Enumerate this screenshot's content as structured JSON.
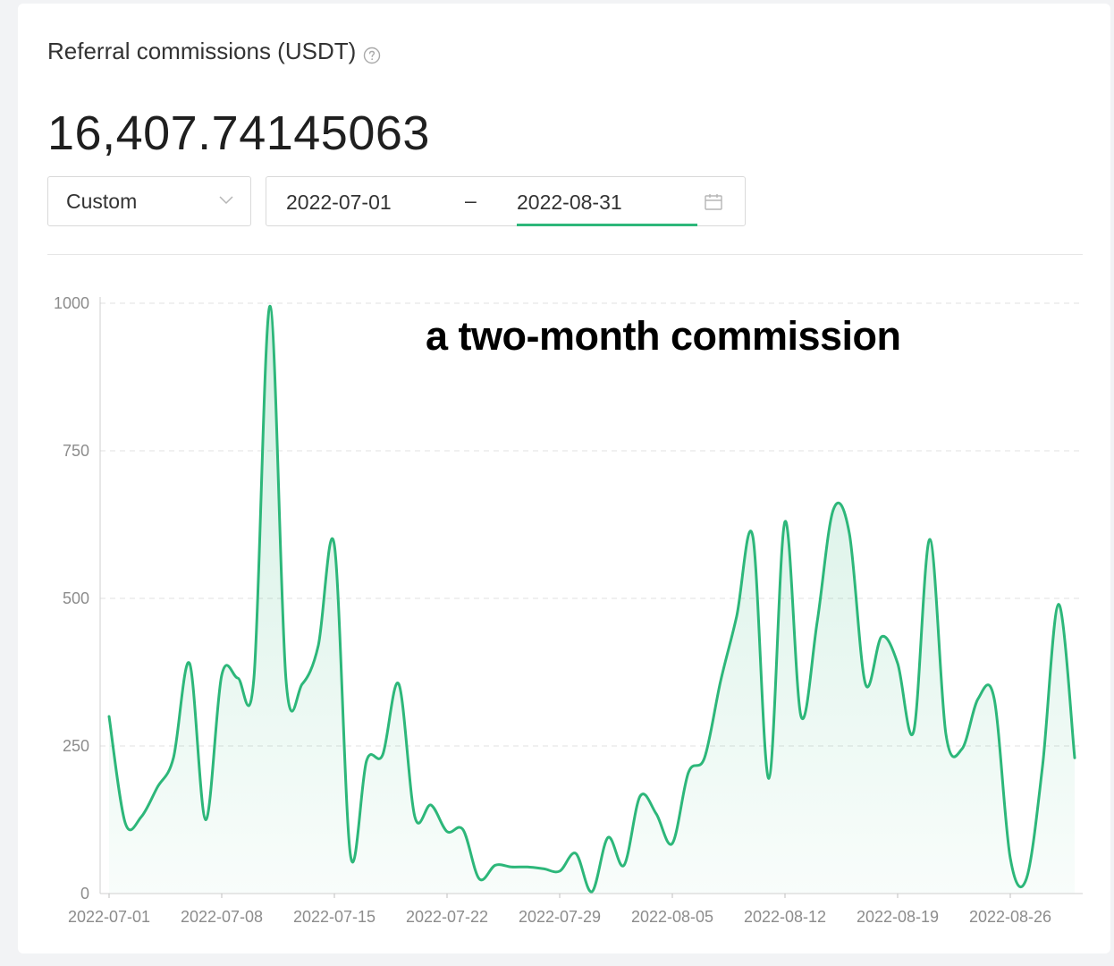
{
  "header": {
    "title": "Referral commissions (USDT)",
    "help_icon": "question-circle-icon",
    "amount": "16,407.74145063"
  },
  "filter": {
    "period_value": "Custom",
    "start_date": "2022-07-01",
    "separator": "–",
    "end_date": "2022-08-31",
    "calendar_icon": "calendar-icon"
  },
  "overlay_caption": "a two-month commission",
  "colors": {
    "accent": "#2db77a",
    "gridline": "#e0e0e0",
    "axis_text": "#8c8c8c"
  },
  "chart_data": {
    "type": "area",
    "ylim": [
      0,
      1000
    ],
    "y_ticks": [
      0,
      250,
      500,
      750,
      1000
    ],
    "x_ticks": [
      "2022-07-01",
      "2022-07-08",
      "2022-07-15",
      "2022-07-22",
      "2022-07-29",
      "2022-08-05",
      "2022-08-12",
      "2022-08-19",
      "2022-08-26"
    ],
    "grid": true,
    "series": [
      {
        "x": [
          "2022-07-01",
          "2022-07-02",
          "2022-07-03",
          "2022-07-04",
          "2022-07-05",
          "2022-07-06",
          "2022-07-07",
          "2022-07-08",
          "2022-07-09",
          "2022-07-10",
          "2022-07-11",
          "2022-07-12",
          "2022-07-13",
          "2022-07-14",
          "2022-07-15",
          "2022-07-16",
          "2022-07-17",
          "2022-07-18",
          "2022-07-19",
          "2022-07-20",
          "2022-07-21",
          "2022-07-22",
          "2022-07-23",
          "2022-07-24",
          "2022-07-25",
          "2022-07-26",
          "2022-07-27",
          "2022-07-28",
          "2022-07-29",
          "2022-07-30",
          "2022-07-31",
          "2022-08-01",
          "2022-08-02",
          "2022-08-03",
          "2022-08-04",
          "2022-08-05",
          "2022-08-06",
          "2022-08-07",
          "2022-08-08",
          "2022-08-09",
          "2022-08-10",
          "2022-08-11",
          "2022-08-12",
          "2022-08-13",
          "2022-08-14",
          "2022-08-15",
          "2022-08-16",
          "2022-08-17",
          "2022-08-18",
          "2022-08-19",
          "2022-08-20",
          "2022-08-21",
          "2022-08-22",
          "2022-08-23",
          "2022-08-24",
          "2022-08-25",
          "2022-08-26",
          "2022-08-27",
          "2022-08-28",
          "2022-08-29",
          "2022-08-30"
        ],
        "values": [
          300,
          120,
          130,
          180,
          230,
          390,
          125,
          370,
          365,
          365,
          995,
          360,
          355,
          420,
          590,
          65,
          225,
          235,
          355,
          130,
          150,
          105,
          108,
          25,
          48,
          45,
          45,
          42,
          38,
          68,
          3,
          95,
          48,
          165,
          135,
          85,
          205,
          230,
          360,
          470,
          605,
          195,
          630,
          300,
          460,
          650,
          610,
          355,
          435,
          390,
          275,
          600,
          270,
          245,
          330,
          330,
          60,
          25,
          215,
          490,
          230
        ]
      }
    ]
  }
}
